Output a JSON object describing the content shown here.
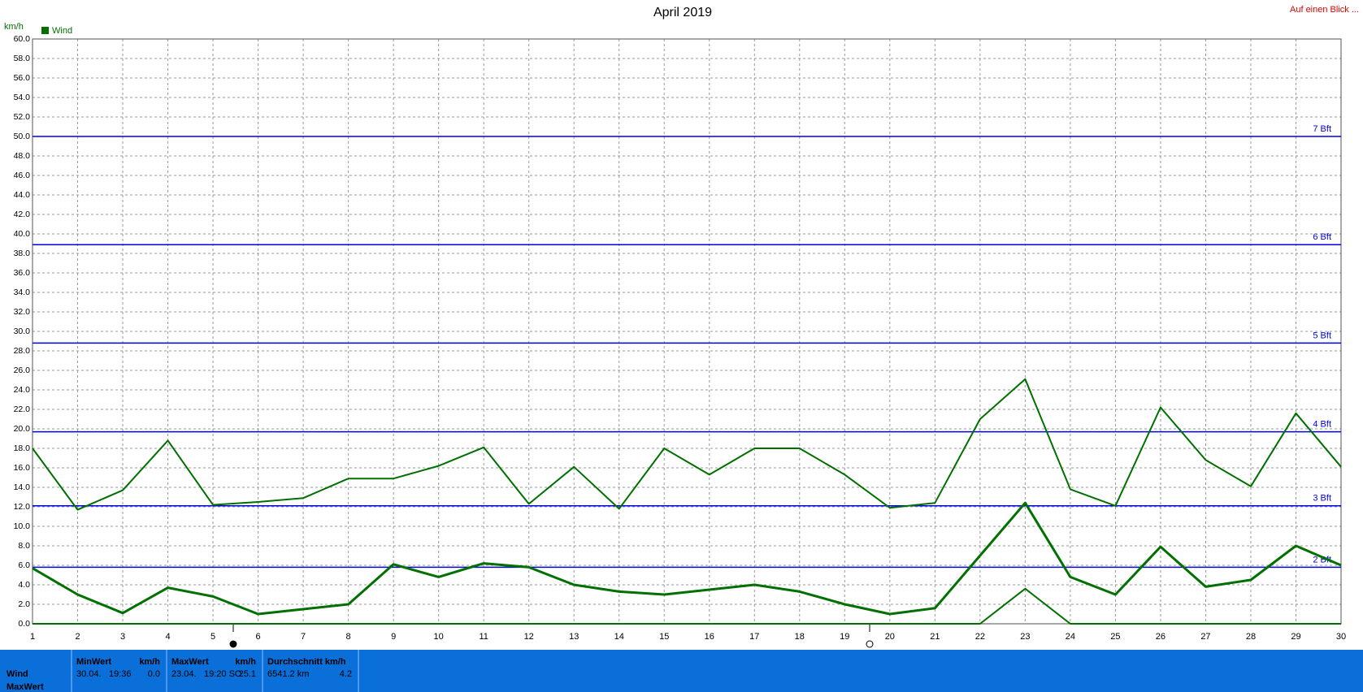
{
  "chart_data": {
    "type": "line",
    "title": "April 2019",
    "corner_link": "Auf einen Blick ...",
    "y_label": "km/h",
    "legend": {
      "label": "Wind",
      "color": "#007000"
    },
    "x": [
      1,
      2,
      3,
      4,
      5,
      6,
      7,
      8,
      9,
      10,
      11,
      12,
      13,
      14,
      15,
      16,
      17,
      18,
      19,
      20,
      21,
      22,
      23,
      24,
      25,
      26,
      27,
      28,
      29,
      30
    ],
    "xlim": [
      1,
      30
    ],
    "xticks": [
      1,
      2,
      3,
      4,
      5,
      6,
      7,
      8,
      9,
      10,
      11,
      12,
      13,
      14,
      15,
      16,
      17,
      18,
      19,
      20,
      21,
      22,
      23,
      24,
      25,
      26,
      27,
      28,
      29,
      30
    ],
    "ylim": [
      0,
      60
    ],
    "yticks": [
      {
        "value": 0,
        "label": "0.0"
      },
      {
        "value": 2,
        "label": "2.0"
      },
      {
        "value": 4,
        "label": "4.0"
      },
      {
        "value": 6,
        "label": "6.0"
      },
      {
        "value": 8,
        "label": "8.0"
      },
      {
        "value": 10,
        "label": "10.0"
      },
      {
        "value": 12,
        "label": "12.0"
      },
      {
        "value": 14,
        "label": "14.0"
      },
      {
        "value": 16,
        "label": "16.0"
      },
      {
        "value": 18,
        "label": "18.0"
      },
      {
        "value": 20,
        "label": "20.0"
      },
      {
        "value": 22,
        "label": "22.0"
      },
      {
        "value": 24,
        "label": "24.0"
      },
      {
        "value": 26,
        "label": "26.0"
      },
      {
        "value": 28,
        "label": "28.0"
      },
      {
        "value": 30,
        "label": "30.0"
      },
      {
        "value": 32,
        "label": "32.0"
      },
      {
        "value": 34,
        "label": "34.0"
      },
      {
        "value": 36,
        "label": "36.0"
      },
      {
        "value": 38,
        "label": "38.0"
      },
      {
        "value": 40,
        "label": "40.0"
      },
      {
        "value": 42,
        "label": "42.0"
      },
      {
        "value": 44,
        "label": "44.0"
      },
      {
        "value": 46,
        "label": "46.0"
      },
      {
        "value": 48,
        "label": "48.0"
      },
      {
        "value": 50,
        "label": "50.0"
      },
      {
        "value": 52,
        "label": "52.0"
      },
      {
        "value": 54,
        "label": "54.0"
      },
      {
        "value": 56,
        "label": "56.0"
      },
      {
        "value": 58,
        "label": "58.0"
      },
      {
        "value": 60,
        "label": "60.0"
      }
    ],
    "grid": true,
    "series": [
      {
        "color": "#007000",
        "width": 2,
        "values": [
          18.0,
          11.7,
          13.7,
          18.8,
          12.2,
          12.5,
          12.9,
          14.9,
          14.9,
          16.2,
          18.1,
          12.3,
          16.1,
          11.8,
          18.0,
          15.3,
          18.0,
          18.0,
          15.3,
          11.9,
          12.4,
          21.0,
          25.1,
          13.8,
          12.1,
          22.2,
          16.8,
          14.1,
          21.6,
          16.1
        ]
      },
      {
        "color": "#007000",
        "width": 3,
        "values": [
          5.7,
          3.0,
          1.1,
          3.7,
          2.8,
          1.0,
          1.5,
          2.0,
          6.1,
          4.8,
          6.2,
          5.8,
          4.0,
          3.3,
          3.0,
          3.5,
          4.0,
          3.3,
          2.0,
          1.0,
          1.6,
          7.0,
          12.4,
          4.8,
          3.0,
          7.9,
          3.8,
          4.5,
          8.0,
          6.0
        ]
      },
      {
        "color": "#007000",
        "width": 2,
        "values": [
          0,
          0,
          0,
          0,
          0,
          0,
          0,
          0,
          0,
          0,
          0,
          0,
          0,
          0,
          0,
          0,
          0,
          0,
          0,
          0,
          0,
          0,
          3.6,
          0,
          0,
          0,
          0,
          0,
          0,
          0
        ]
      }
    ],
    "reference_lines": {
      "color": "#0000e0",
      "lines": [
        {
          "value": 5.8,
          "label": "2 Bft"
        },
        {
          "value": 12.1,
          "label": "3 Bft"
        },
        {
          "value": 19.7,
          "label": "4 Bft"
        },
        {
          "value": 28.8,
          "label": "5 Bft"
        },
        {
          "value": 38.9,
          "label": "6 Bft"
        },
        {
          "value": 50.0,
          "label": "7 Bft"
        }
      ]
    }
  },
  "stats": {
    "row_labels": [
      "Wind",
      "MaxWert"
    ],
    "columns": [
      {
        "header": "MinWert",
        "unit": "km/h",
        "date": "30.04.",
        "time": "19:36",
        "value": "0.0"
      },
      {
        "header": "MaxWert",
        "unit": "km/h",
        "date": "23.04.",
        "time": "19:20 SO",
        "value": "25.1"
      },
      {
        "header": "Durchschnitt km/h",
        "unit": "",
        "date": "6541.2 km",
        "time": "",
        "value": "4.2"
      }
    ]
  }
}
